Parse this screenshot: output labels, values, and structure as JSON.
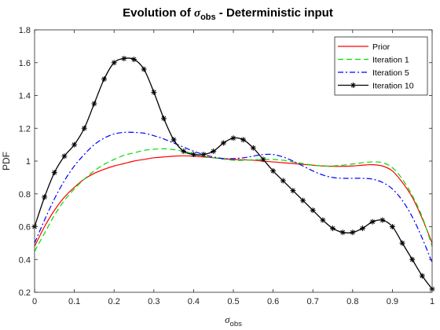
{
  "chart_data": {
    "type": "line",
    "title": {
      "prefix": "Evolution of ",
      "symbol": "σ",
      "symbol_sub": "obs",
      "suffix": " - Deterministic input"
    },
    "xlabel": {
      "symbol": "σ",
      "sub": "obs"
    },
    "ylabel": "PDF",
    "xlim": [
      0,
      1
    ],
    "ylim": [
      0.2,
      1.8
    ],
    "xticks": [
      "0",
      "0.1",
      "0.2",
      "0.3",
      "0.4",
      "0.5",
      "0.6",
      "0.7",
      "0.8",
      "0.9",
      "1"
    ],
    "yticks": [
      "0.2",
      "0.4",
      "0.6",
      "0.8",
      "1",
      "1.2",
      "1.4",
      "1.6",
      "1.8"
    ],
    "grid": false,
    "legend_position": "top-right",
    "series": [
      {
        "name": "Prior",
        "color": "#ff0000",
        "style": "solid",
        "marker": "none",
        "x": [
          0,
          0.025,
          0.05,
          0.075,
          0.1,
          0.125,
          0.15,
          0.175,
          0.2,
          0.225,
          0.25,
          0.275,
          0.3,
          0.325,
          0.35,
          0.375,
          0.4,
          0.425,
          0.45,
          0.475,
          0.5,
          0.525,
          0.55,
          0.575,
          0.6,
          0.625,
          0.65,
          0.675,
          0.7,
          0.725,
          0.75,
          0.775,
          0.8,
          0.825,
          0.85,
          0.875,
          0.9,
          0.925,
          0.95,
          0.975,
          1
        ],
        "y": [
          0.48,
          0.6,
          0.7,
          0.78,
          0.84,
          0.89,
          0.925,
          0.95,
          0.97,
          0.985,
          1.0,
          1.01,
          1.02,
          1.025,
          1.03,
          1.032,
          1.03,
          1.025,
          1.02,
          1.015,
          1.01,
          1.008,
          1.005,
          1.0,
          0.995,
          0.99,
          0.985,
          0.98,
          0.975,
          0.97,
          0.968,
          0.968,
          0.97,
          0.975,
          0.978,
          0.97,
          0.94,
          0.87,
          0.78,
          0.65,
          0.5
        ]
      },
      {
        "name": "Iteration 1",
        "color": "#00dd00",
        "style": "dashed",
        "marker": "none",
        "x": [
          0,
          0.025,
          0.05,
          0.075,
          0.1,
          0.125,
          0.15,
          0.175,
          0.2,
          0.225,
          0.25,
          0.275,
          0.3,
          0.325,
          0.35,
          0.375,
          0.4,
          0.425,
          0.45,
          0.475,
          0.5,
          0.525,
          0.55,
          0.575,
          0.6,
          0.625,
          0.65,
          0.675,
          0.7,
          0.725,
          0.75,
          0.775,
          0.8,
          0.825,
          0.85,
          0.875,
          0.9,
          0.925,
          0.95,
          0.975,
          1
        ],
        "y": [
          0.45,
          0.56,
          0.67,
          0.76,
          0.83,
          0.89,
          0.94,
          0.98,
          1.01,
          1.035,
          1.05,
          1.065,
          1.072,
          1.075,
          1.07,
          1.06,
          1.045,
          1.03,
          1.02,
          1.012,
          1.005,
          1.005,
          1.008,
          1.01,
          1.01,
          1.005,
          0.995,
          0.985,
          0.975,
          0.97,
          0.97,
          0.975,
          0.982,
          0.99,
          0.995,
          0.99,
          0.96,
          0.89,
          0.79,
          0.66,
          0.48
        ]
      },
      {
        "name": "Iteration 5",
        "color": "#0000ff",
        "style": "dashdot",
        "marker": "none",
        "x": [
          0,
          0.025,
          0.05,
          0.075,
          0.1,
          0.125,
          0.15,
          0.175,
          0.2,
          0.225,
          0.25,
          0.275,
          0.3,
          0.325,
          0.35,
          0.375,
          0.4,
          0.425,
          0.45,
          0.475,
          0.5,
          0.525,
          0.55,
          0.575,
          0.6,
          0.625,
          0.65,
          0.675,
          0.7,
          0.725,
          0.75,
          0.775,
          0.8,
          0.825,
          0.85,
          0.875,
          0.9,
          0.925,
          0.95,
          0.975,
          1
        ],
        "y": [
          0.5,
          0.64,
          0.77,
          0.88,
          0.97,
          1.04,
          1.1,
          1.14,
          1.165,
          1.175,
          1.175,
          1.17,
          1.155,
          1.135,
          1.11,
          1.085,
          1.06,
          1.04,
          1.025,
          1.015,
          1.015,
          1.02,
          1.03,
          1.04,
          1.04,
          1.025,
          1.0,
          0.97,
          0.94,
          0.915,
          0.9,
          0.895,
          0.895,
          0.895,
          0.89,
          0.87,
          0.83,
          0.76,
          0.66,
          0.53,
          0.38
        ]
      },
      {
        "name": "Iteration 10",
        "color": "#000000",
        "style": "solid",
        "marker": "asterisk",
        "x": [
          0,
          0.025,
          0.05,
          0.075,
          0.1,
          0.125,
          0.15,
          0.175,
          0.2,
          0.225,
          0.25,
          0.275,
          0.3,
          0.325,
          0.35,
          0.375,
          0.4,
          0.425,
          0.45,
          0.475,
          0.5,
          0.525,
          0.55,
          0.575,
          0.6,
          0.625,
          0.65,
          0.675,
          0.7,
          0.725,
          0.75,
          0.775,
          0.8,
          0.825,
          0.85,
          0.875,
          0.9,
          0.925,
          0.95,
          0.975,
          1
        ],
        "y": [
          0.6,
          0.78,
          0.93,
          1.03,
          1.1,
          1.2,
          1.35,
          1.5,
          1.6,
          1.625,
          1.62,
          1.56,
          1.42,
          1.26,
          1.13,
          1.06,
          1.04,
          1.04,
          1.06,
          1.11,
          1.14,
          1.13,
          1.08,
          1.01,
          0.94,
          0.88,
          0.82,
          0.76,
          0.7,
          0.64,
          0.59,
          0.565,
          0.565,
          0.59,
          0.63,
          0.64,
          0.6,
          0.5,
          0.4,
          0.3,
          0.22
        ]
      }
    ]
  }
}
